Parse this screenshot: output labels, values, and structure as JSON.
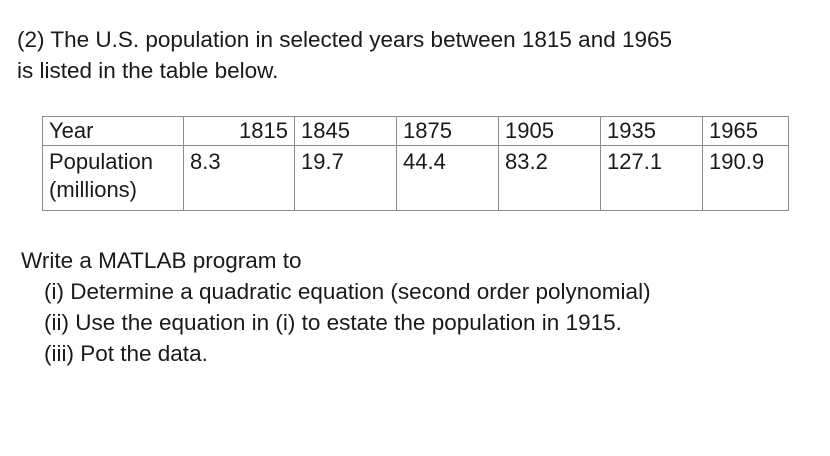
{
  "problem": {
    "intro_line1": "(2) The U.S. population in selected years between 1815 and 1965",
    "intro_line2": "is listed in the table below."
  },
  "table": {
    "row1_label": "Year",
    "row2_label_line1": "Population",
    "row2_label_line2": "(millions)",
    "years": [
      "1815",
      "1845",
      "1875",
      "1905",
      "1935",
      "1965"
    ],
    "population": [
      "8.3",
      "19.7",
      "44.4",
      "83.2",
      "127.1",
      "190.9"
    ]
  },
  "tasks": {
    "heading": "Write a MATLAB program to",
    "items": [
      "(i) Determine a quadratic equation (second order polynomial)",
      "(ii) Use the equation in (i) to estate the population in 1915.",
      "(iii) Pot the data."
    ]
  }
}
